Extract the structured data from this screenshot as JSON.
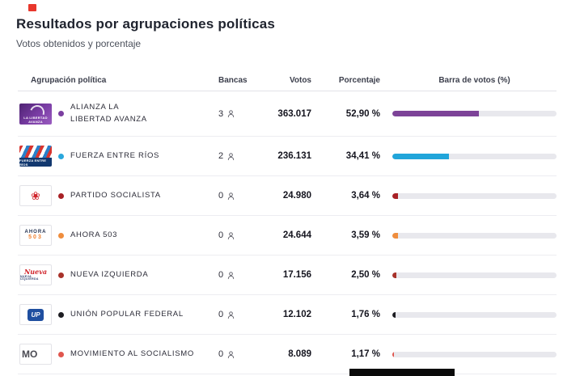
{
  "page": {
    "title": "Resultados por agrupaciones políticas",
    "subtitle": "Votos obtenidos y porcentaje"
  },
  "table": {
    "headers": {
      "party": "Agrupación política",
      "seats": "Bancas",
      "votes": "Votos",
      "percentage": "Porcentaje",
      "bar": "Barra de votos (%)"
    },
    "rows": [
      {
        "name": "ALIANZA LA\nLIBERTAD AVANZA",
        "seats": "3",
        "votes": "363.017",
        "percentage": "52,90 %",
        "percent_value": 52.9,
        "dot_color": "#7b3fa0",
        "bar_color": "#7d4398",
        "logo": {
          "text": "LA LIBERTAD AVANZA"
        }
      },
      {
        "name": "FUERZA ENTRE RÍOS",
        "seats": "2",
        "votes": "236.131",
        "percentage": "34,41 %",
        "percent_value": 34.41,
        "dot_color": "#2aa7dc",
        "bar_color": "#21a5da",
        "logo": {
          "text": "FUERZA ENTRE RÍOS"
        }
      },
      {
        "name": "PARTIDO SOCIALISTA",
        "seats": "0",
        "votes": "24.980",
        "percentage": "3,64 %",
        "percent_value": 3.64,
        "dot_color": "#a82025",
        "bar_color": "#a82025",
        "logo": {
          "glyph": "❀"
        }
      },
      {
        "name": "AHORA 503",
        "seats": "0",
        "votes": "24.644",
        "percentage": "3,59 %",
        "percent_value": 3.59,
        "dot_color": "#ef8d3d",
        "bar_color": "#ef8d3d",
        "logo": {
          "line1": "AHORA",
          "line2": "503"
        }
      },
      {
        "name": "NUEVA IZQUIERDA",
        "seats": "0",
        "votes": "17.156",
        "percentage": "2,50 %",
        "percent_value": 2.5,
        "dot_color": "#a8322a",
        "bar_color": "#a8322a",
        "logo": {
          "line1": "Nueva",
          "line2": "NUEVA IZQUIERDA"
        }
      },
      {
        "name": "UNIÓN POPULAR FEDERAL",
        "seats": "0",
        "votes": "12.102",
        "percentage": "1,76 %",
        "percent_value": 1.76,
        "dot_color": "#1d1d22",
        "bar_color": "#1d1d22",
        "logo": {
          "text": "UP"
        }
      },
      {
        "name": "MOVIMIENTO AL SOCIALISMO",
        "seats": "0",
        "votes": "8.089",
        "percentage": "1,17 %",
        "percent_value": 1.17,
        "dot_color": "#e0564e",
        "bar_color": "#e0564e",
        "logo": {
          "text": "MO"
        }
      }
    ]
  },
  "chart_data": {
    "type": "bar",
    "categories": [
      "Alianza La Libertad Avanza",
      "Fuerza Entre Ríos",
      "Partido Socialista",
      "Ahora 503",
      "Nueva Izquierda",
      "Unión Popular Federal",
      "Movimiento al Socialismo"
    ],
    "series": [
      {
        "name": "Votos",
        "values": [
          363017,
          236131,
          24980,
          24644,
          17156,
          12102,
          8089
        ]
      },
      {
        "name": "Porcentaje",
        "values": [
          52.9,
          34.41,
          3.64,
          3.59,
          2.5,
          1.76,
          1.17
        ]
      },
      {
        "name": "Bancas",
        "values": [
          3,
          2,
          0,
          0,
          0,
          0,
          0
        ]
      }
    ],
    "title": "Resultados por agrupaciones políticas",
    "xlabel": "",
    "ylabel": "Barra de votos (%)",
    "xlim": [
      0,
      100
    ]
  }
}
